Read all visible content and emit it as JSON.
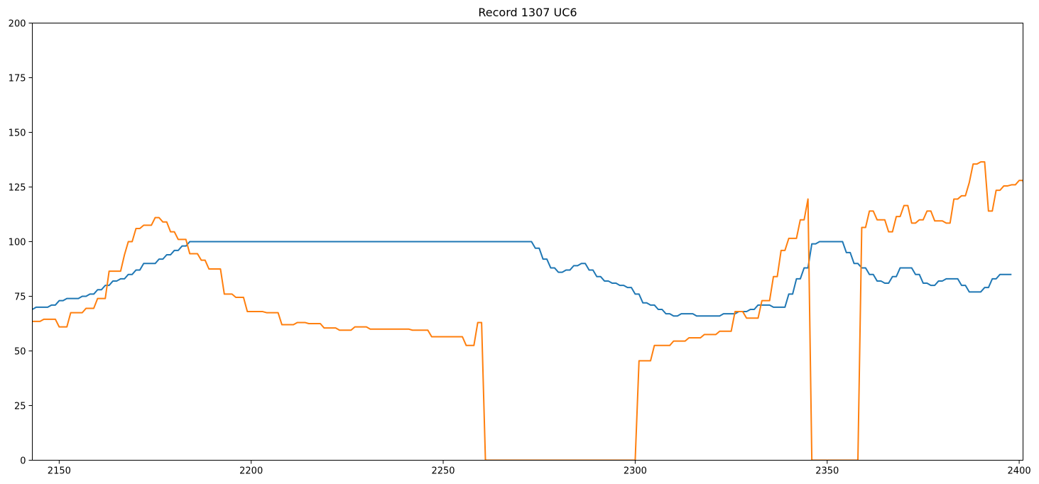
{
  "chart_data": {
    "type": "line",
    "title": "Record 1307 UC6",
    "xlabel": "",
    "ylabel": "",
    "xlim": [
      2143,
      2401
    ],
    "ylim": [
      0,
      200
    ],
    "xticks": [
      2150,
      2200,
      2250,
      2300,
      2350,
      2400
    ],
    "yticks": [
      0,
      25,
      50,
      75,
      100,
      125,
      150,
      175,
      200
    ],
    "grid": false,
    "legend": "none",
    "series": [
      {
        "color": "#1f77b4",
        "points": [
          [
            2143,
            69
          ],
          [
            2144,
            70
          ],
          [
            2146,
            70
          ],
          [
            2147,
            70
          ],
          [
            2148,
            71
          ],
          [
            2149,
            71
          ],
          [
            2150,
            73
          ],
          [
            2151,
            73
          ],
          [
            2152,
            74
          ],
          [
            2155,
            74
          ],
          [
            2156,
            75
          ],
          [
            2157,
            75
          ],
          [
            2158,
            76
          ],
          [
            2159,
            76
          ],
          [
            2160,
            78
          ],
          [
            2161,
            78
          ],
          [
            2162,
            80
          ],
          [
            2163,
            80
          ],
          [
            2164,
            82
          ],
          [
            2165,
            82
          ],
          [
            2166,
            83
          ],
          [
            2167,
            83
          ],
          [
            2168,
            85
          ],
          [
            2169,
            85
          ],
          [
            2170,
            87
          ],
          [
            2171,
            87
          ],
          [
            2172,
            90
          ],
          [
            2175,
            90
          ],
          [
            2176,
            92
          ],
          [
            2177,
            92
          ],
          [
            2178,
            94
          ],
          [
            2179,
            94
          ],
          [
            2180,
            96
          ],
          [
            2181,
            96
          ],
          [
            2182,
            98
          ],
          [
            2183,
            98
          ],
          [
            2184,
            100
          ],
          [
            2273,
            100
          ],
          [
            2274,
            97
          ],
          [
            2275,
            97
          ],
          [
            2276,
            92
          ],
          [
            2277,
            92
          ],
          [
            2278,
            88
          ],
          [
            2279,
            88
          ],
          [
            2280,
            86
          ],
          [
            2281,
            86
          ],
          [
            2282,
            87
          ],
          [
            2283,
            87
          ],
          [
            2284,
            89
          ],
          [
            2285,
            89
          ],
          [
            2286,
            90
          ],
          [
            2287,
            90
          ],
          [
            2288,
            87
          ],
          [
            2289,
            87
          ],
          [
            2290,
            84
          ],
          [
            2291,
            84
          ],
          [
            2292,
            82
          ],
          [
            2293,
            82
          ],
          [
            2294,
            81
          ],
          [
            2295,
            81
          ],
          [
            2296,
            80
          ],
          [
            2297,
            80
          ],
          [
            2298,
            79
          ],
          [
            2299,
            79
          ],
          [
            2300,
            76
          ],
          [
            2301,
            76
          ],
          [
            2302,
            72
          ],
          [
            2303,
            72
          ],
          [
            2304,
            71
          ],
          [
            2305,
            71
          ],
          [
            2306,
            69
          ],
          [
            2307,
            69
          ],
          [
            2308,
            67
          ],
          [
            2309,
            67
          ],
          [
            2310,
            66
          ],
          [
            2311,
            66
          ],
          [
            2312,
            67
          ],
          [
            2315,
            67
          ],
          [
            2316,
            66
          ],
          [
            2322,
            66
          ],
          [
            2323,
            67
          ],
          [
            2326,
            67
          ],
          [
            2327,
            68
          ],
          [
            2329,
            68
          ],
          [
            2330,
            69
          ],
          [
            2331,
            69
          ],
          [
            2332,
            71
          ],
          [
            2335,
            71
          ],
          [
            2336,
            70
          ],
          [
            2339,
            70
          ],
          [
            2340,
            76
          ],
          [
            2341,
            76
          ],
          [
            2342,
            83
          ],
          [
            2343,
            83
          ],
          [
            2344,
            88
          ],
          [
            2345,
            88
          ],
          [
            2346,
            99
          ],
          [
            2347,
            99
          ],
          [
            2348,
            100
          ],
          [
            2354,
            100
          ],
          [
            2355,
            95
          ],
          [
            2356,
            95
          ],
          [
            2357,
            90
          ],
          [
            2358,
            90
          ],
          [
            2359,
            88
          ],
          [
            2360,
            88
          ],
          [
            2361,
            85
          ],
          [
            2362,
            85
          ],
          [
            2363,
            82
          ],
          [
            2364,
            82
          ],
          [
            2365,
            81
          ],
          [
            2366,
            81
          ],
          [
            2367,
            84
          ],
          [
            2368,
            84
          ],
          [
            2369,
            88
          ],
          [
            2372,
            88
          ],
          [
            2373,
            85
          ],
          [
            2374,
            85
          ],
          [
            2375,
            81
          ],
          [
            2376,
            81
          ],
          [
            2377,
            80
          ],
          [
            2378,
            80
          ],
          [
            2379,
            82
          ],
          [
            2380,
            82
          ],
          [
            2381,
            83
          ],
          [
            2384,
            83
          ],
          [
            2385,
            80
          ],
          [
            2386,
            80
          ],
          [
            2387,
            77
          ],
          [
            2390,
            77
          ],
          [
            2391,
            79
          ],
          [
            2392,
            79
          ],
          [
            2393,
            83
          ],
          [
            2394,
            83
          ],
          [
            2395,
            85
          ],
          [
            2398,
            85
          ]
        ]
      },
      {
        "color": "#ff7f0e",
        "points": [
          [
            2143,
            63.5
          ],
          [
            2145,
            63.5
          ],
          [
            2146,
            64.5
          ],
          [
            2149,
            64.5
          ],
          [
            2150,
            61
          ],
          [
            2152,
            61
          ],
          [
            2153,
            67.5
          ],
          [
            2156,
            67.5
          ],
          [
            2157,
            69.5
          ],
          [
            2159,
            69.5
          ],
          [
            2160,
            74
          ],
          [
            2162,
            74
          ],
          [
            2163,
            86.5
          ],
          [
            2166,
            86.5
          ],
          [
            2167,
            94
          ],
          [
            2168,
            100
          ],
          [
            2169,
            100
          ],
          [
            2170,
            106
          ],
          [
            2171,
            106
          ],
          [
            2172,
            107.5
          ],
          [
            2174,
            107.5
          ],
          [
            2175,
            111
          ],
          [
            2176,
            111
          ],
          [
            2177,
            109
          ],
          [
            2178,
            109
          ],
          [
            2179,
            104.5
          ],
          [
            2180,
            104.5
          ],
          [
            2181,
            101
          ],
          [
            2183,
            101
          ],
          [
            2184,
            94.5
          ],
          [
            2186,
            94.5
          ],
          [
            2187,
            91.5
          ],
          [
            2188,
            91.5
          ],
          [
            2189,
            87.5
          ],
          [
            2192,
            87.5
          ],
          [
            2193,
            76
          ],
          [
            2195,
            76
          ],
          [
            2196,
            74.5
          ],
          [
            2198,
            74.5
          ],
          [
            2199,
            68
          ],
          [
            2203,
            68
          ],
          [
            2204,
            67.5
          ],
          [
            2207,
            67.5
          ],
          [
            2208,
            62
          ],
          [
            2211,
            62
          ],
          [
            2212,
            63
          ],
          [
            2214,
            63
          ],
          [
            2215,
            62.5
          ],
          [
            2218,
            62.5
          ],
          [
            2219,
            60.5
          ],
          [
            2222,
            60.5
          ],
          [
            2223,
            59.5
          ],
          [
            2226,
            59.5
          ],
          [
            2227,
            61
          ],
          [
            2230,
            61
          ],
          [
            2231,
            60
          ],
          [
            2241,
            60
          ],
          [
            2242,
            59.5
          ],
          [
            2246,
            59.5
          ],
          [
            2247,
            56.5
          ],
          [
            2255,
            56.5
          ],
          [
            2256,
            52.5
          ],
          [
            2258,
            52.5
          ],
          [
            2259,
            63
          ],
          [
            2260,
            63
          ],
          [
            2261,
            0
          ],
          [
            2300,
            0
          ],
          [
            2301,
            45.5
          ],
          [
            2304,
            45.5
          ],
          [
            2305,
            52.5
          ],
          [
            2309,
            52.5
          ],
          [
            2310,
            54.5
          ],
          [
            2313,
            54.5
          ],
          [
            2314,
            56
          ],
          [
            2317,
            56
          ],
          [
            2318,
            57.5
          ],
          [
            2321,
            57.5
          ],
          [
            2322,
            59
          ],
          [
            2325,
            59
          ],
          [
            2326,
            68
          ],
          [
            2328,
            68
          ],
          [
            2329,
            65
          ],
          [
            2332,
            65
          ],
          [
            2333,
            73
          ],
          [
            2335,
            73
          ],
          [
            2336,
            84
          ],
          [
            2337,
            84
          ],
          [
            2338,
            96
          ],
          [
            2339,
            96
          ],
          [
            2340,
            101.5
          ],
          [
            2342,
            101.5
          ],
          [
            2343,
            110
          ],
          [
            2344,
            110
          ],
          [
            2345,
            119.5
          ],
          [
            2346,
            0
          ],
          [
            2358,
            0
          ],
          [
            2359,
            106.5
          ],
          [
            2360,
            106.5
          ],
          [
            2361,
            114
          ],
          [
            2362,
            114
          ],
          [
            2363,
            110
          ],
          [
            2365,
            110
          ],
          [
            2366,
            104.5
          ],
          [
            2367,
            104.5
          ],
          [
            2368,
            111.5
          ],
          [
            2369,
            111.5
          ],
          [
            2370,
            116.5
          ],
          [
            2371,
            116.5
          ],
          [
            2372,
            108.5
          ],
          [
            2373,
            108.5
          ],
          [
            2374,
            110
          ],
          [
            2375,
            110
          ],
          [
            2376,
            114
          ],
          [
            2377,
            114
          ],
          [
            2378,
            109.5
          ],
          [
            2380,
            109.5
          ],
          [
            2381,
            108.5
          ],
          [
            2382,
            108.5
          ],
          [
            2383,
            119.5
          ],
          [
            2384,
            119.5
          ],
          [
            2385,
            121
          ],
          [
            2386,
            121
          ],
          [
            2387,
            127
          ],
          [
            2388,
            135.5
          ],
          [
            2389,
            135.5
          ],
          [
            2390,
            136.5
          ],
          [
            2391,
            136.5
          ],
          [
            2392,
            114
          ],
          [
            2393,
            114
          ],
          [
            2394,
            123.5
          ],
          [
            2395,
            123.5
          ],
          [
            2396,
            125.5
          ],
          [
            2397,
            125.5
          ],
          [
            2398,
            126
          ],
          [
            2399,
            126
          ],
          [
            2400,
            128
          ],
          [
            2401,
            128
          ],
          [
            2402,
            114
          ]
        ]
      }
    ]
  }
}
